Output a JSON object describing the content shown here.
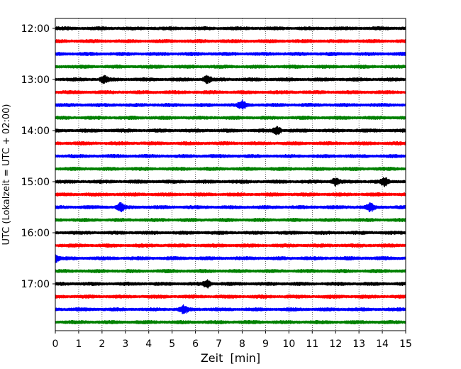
{
  "chart_data": {
    "type": "line",
    "title": "",
    "xlabel": "Zeit  [min]",
    "ylabel": "UTC (Lokalzeit = UTC + 02:00)",
    "xlim": [
      0,
      15
    ],
    "x_ticks": [
      0,
      1,
      2,
      3,
      4,
      5,
      6,
      7,
      8,
      9,
      10,
      11,
      12,
      13,
      14,
      15
    ],
    "y_tick_labels": [
      "12:00",
      "13:00",
      "14:00",
      "15:00",
      "16:00",
      "17:00"
    ],
    "traces_per_hour": 4,
    "trace_start_times": [
      "12:00",
      "12:15",
      "12:30",
      "12:45",
      "13:00",
      "13:15",
      "13:30",
      "13:45",
      "14:00",
      "14:15",
      "14:30",
      "14:45",
      "15:00",
      "15:15",
      "15:30",
      "15:45",
      "16:00",
      "16:15",
      "16:30",
      "16:45",
      "17:00",
      "17:15",
      "17:30",
      "17:45"
    ],
    "trace_colors": [
      "#000000",
      "#ff0000",
      "#0000ff",
      "#008000"
    ],
    "vertical_grid": "dotted",
    "legend": "none",
    "events": [
      {
        "trace": "13:00",
        "minute": 2.1
      },
      {
        "trace": "13:00",
        "minute": 6.5
      },
      {
        "trace": "13:30",
        "minute": 8.0
      },
      {
        "trace": "14:00",
        "minute": 9.5
      },
      {
        "trace": "15:00",
        "minute": 12.0
      },
      {
        "trace": "15:00",
        "minute": 14.1
      },
      {
        "trace": "15:30",
        "minute": 2.8
      },
      {
        "trace": "15:30",
        "minute": 13.5
      },
      {
        "trace": "16:30",
        "minute": 0.0
      },
      {
        "trace": "17:00",
        "minute": 6.5
      },
      {
        "trace": "17:30",
        "minute": 5.5
      }
    ]
  }
}
